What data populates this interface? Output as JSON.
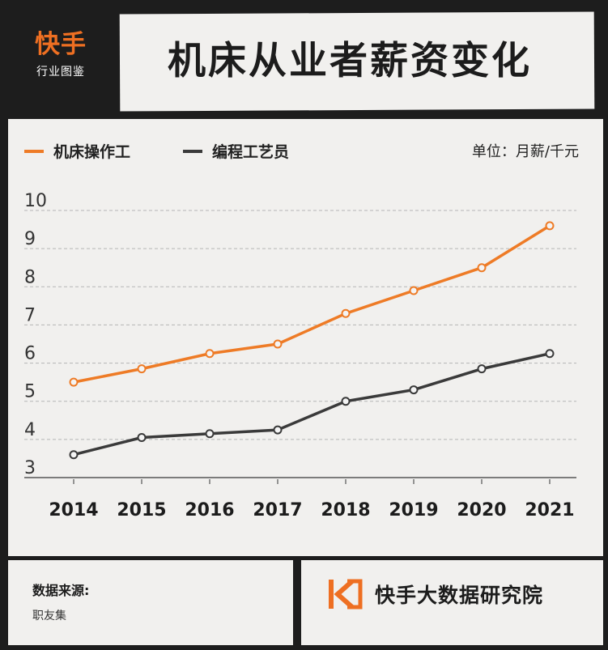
{
  "brand": {
    "name": "快手",
    "subtitle": "行业图鉴"
  },
  "title": "机床从业者薪资变化",
  "unit": "单位：月薪/千元",
  "source": {
    "label": "数据来源:",
    "value": "职友集"
  },
  "footer_brand": "快手大数据研究院",
  "colors": {
    "operator": "#ee7b26",
    "programmer": "#3a3a3a",
    "accent": "#ee6f22"
  },
  "chart_data": {
    "type": "line",
    "x": [
      "2014",
      "2015",
      "2016",
      "2017",
      "2018",
      "2019",
      "2020",
      "2021"
    ],
    "series": [
      {
        "name": "机床操作工",
        "values": [
          5.5,
          5.85,
          6.25,
          6.5,
          7.3,
          7.9,
          8.5,
          9.6
        ]
      },
      {
        "name": "编程工艺员",
        "values": [
          3.6,
          4.05,
          4.15,
          4.25,
          5.0,
          5.3,
          5.85,
          6.25
        ]
      }
    ],
    "yticks": [
      "10",
      "9",
      "8",
      "7",
      "6",
      "5",
      "4",
      "3"
    ],
    "ylim": [
      3,
      10
    ],
    "grid": true,
    "legend": "top-left"
  }
}
